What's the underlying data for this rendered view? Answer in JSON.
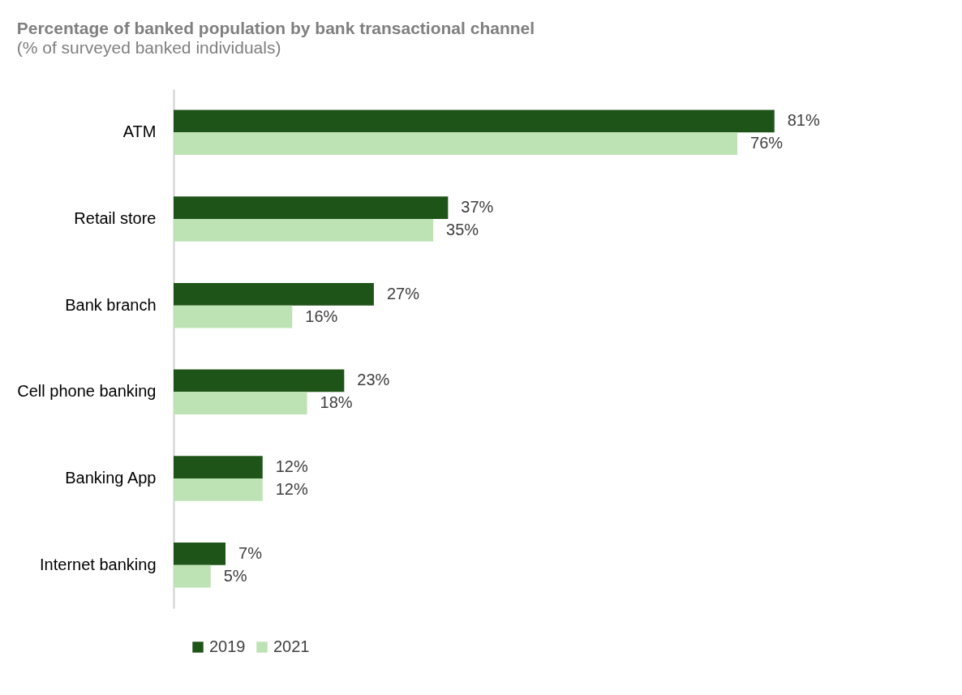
{
  "chart_data": {
    "type": "bar",
    "orientation": "horizontal",
    "title": "Percentage of banked population by bank transactional channel",
    "subtitle": "(% of surveyed banked individuals)",
    "categories": [
      "ATM",
      "Retail store",
      "Bank branch",
      "Cell phone banking",
      "Banking App",
      "Internet banking"
    ],
    "series": [
      {
        "name": "2019",
        "color": "#1f5418",
        "values": [
          81,
          37,
          27,
          23,
          12,
          7
        ],
        "value_labels": [
          "81%",
          "37%",
          "27%",
          "23%",
          "12%",
          "7%"
        ]
      },
      {
        "name": "2021",
        "color": "#bde3b4",
        "values": [
          76,
          35,
          16,
          18,
          12,
          5
        ],
        "value_labels": [
          "76%",
          "35%",
          "16%",
          "18%",
          "12%",
          "5%"
        ]
      }
    ],
    "legend": "bottom"
  }
}
